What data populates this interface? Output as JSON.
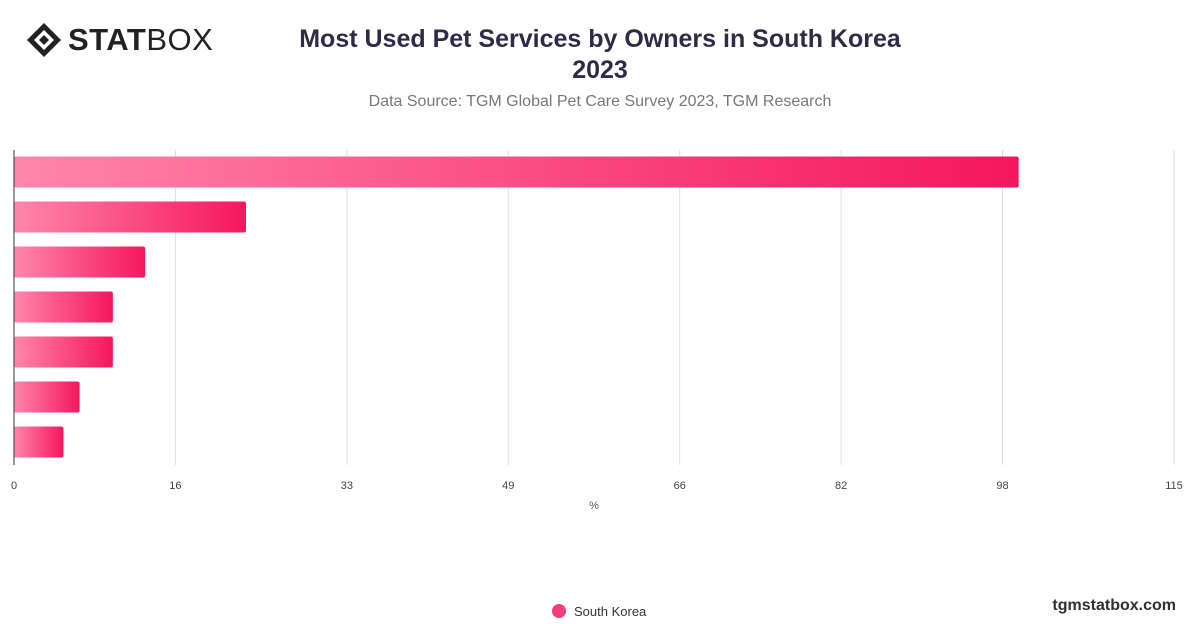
{
  "logo": {
    "text_bold": "STAT",
    "text_light": "BOX",
    "icon": "diamond-logo-icon"
  },
  "header": {
    "title_line1": "Most Used Pet Services by Owners in South Korea",
    "title_line2": "2023",
    "subtitle": "Data Source: TGM Global Pet Care Survey 2023, TGM Research"
  },
  "footer": {
    "site": "tgmstatbox.com"
  },
  "colors": {
    "bar_start": "#ff86ad",
    "bar_end": "#f5165f",
    "legend": "#ef3f7a",
    "grid": "#dddddd",
    "axis": "#333333"
  },
  "chart_data": {
    "type": "bar",
    "orientation": "horizontal",
    "categories": [
      "",
      "",
      "",
      "",
      "",
      "",
      ""
    ],
    "series": [
      {
        "name": "South Korea",
        "values": [
          99.6,
          23,
          13,
          9.8,
          9.8,
          6.5,
          4.9
        ]
      }
    ],
    "xlabel": "%",
    "xticks": [
      "0",
      "16",
      "33",
      "49",
      "66",
      "82",
      "98",
      "115"
    ],
    "xlim": [
      0,
      115
    ],
    "grid": true,
    "legend": "bottom-center"
  }
}
